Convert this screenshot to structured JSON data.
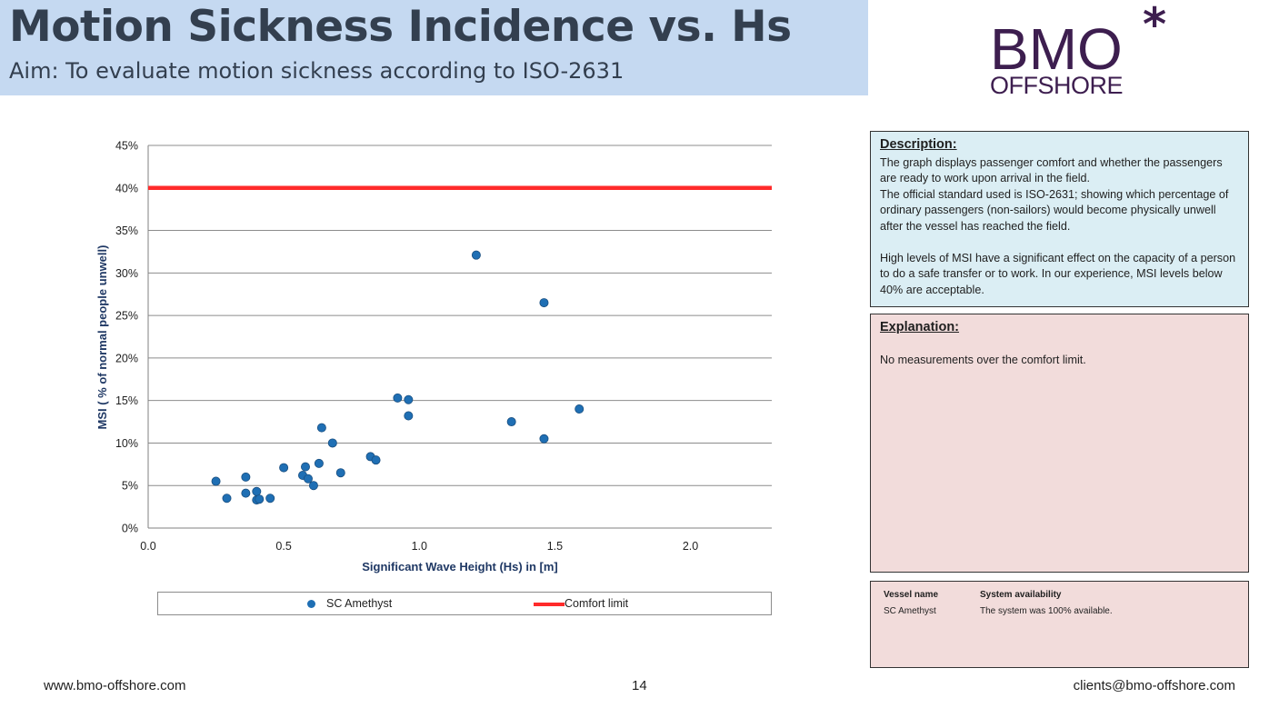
{
  "header": {
    "title": "Motion Sickness Incidence vs. Hs",
    "subtitle": "Aim: To evaluate motion sickness according to ISO-2631"
  },
  "logo": {
    "line1": "BMO",
    "line2": "OFFSHORE",
    "mark": "*",
    "color": "#3d1e4f"
  },
  "description": {
    "heading": "Description:",
    "p1": "The graph displays passenger comfort and whether the passengers are ready to work upon arrival in the field.",
    "p2": "The official standard used is ISO-2631; showing which percentage of ordinary passengers (non-sailors) would become physically unwell after the vessel has reached the field.",
    "p3": "High levels of MSI have a significant effect on the capacity of a person to do a safe transfer or to work. In our experience, MSI levels below 40% are acceptable."
  },
  "explanation": {
    "heading": "Explanation:",
    "text": "No measurements over the comfort limit."
  },
  "vessel_table": {
    "col1_header": "Vessel name",
    "col2_header": "System availability",
    "col1_value": "SC Amethyst",
    "col2_value": "The system was 100% available."
  },
  "legend": {
    "series1": "SC Amethyst",
    "series2": "Comfort limit"
  },
  "footer": {
    "website": "www.bmo-offshore.com",
    "page": "14",
    "email": "clients@bmo-offshore.com"
  },
  "chart_data": {
    "type": "scatter",
    "xlabel": "Significant Wave Height (Hs) in [m]",
    "ylabel": "MSI ( % of normal people unwell)",
    "xlim": [
      0,
      2.3
    ],
    "ylim": [
      0,
      45
    ],
    "x_ticks": [
      "0.0",
      "0.5",
      "1.0",
      "1.5",
      "2.0"
    ],
    "x_tick_values": [
      0,
      0.5,
      1.0,
      1.5,
      2.0
    ],
    "y_ticks": [
      "0%",
      "5%",
      "10%",
      "15%",
      "20%",
      "25%",
      "30%",
      "35%",
      "40%",
      "45%"
    ],
    "y_tick_values": [
      0,
      5,
      10,
      15,
      20,
      25,
      30,
      35,
      40,
      45
    ],
    "grid": true,
    "series": [
      {
        "name": "SC Amethyst",
        "color": "#1f6fb4",
        "points": [
          [
            0.25,
            5.5
          ],
          [
            0.29,
            3.5
          ],
          [
            0.36,
            6.0
          ],
          [
            0.36,
            4.1
          ],
          [
            0.4,
            4.3
          ],
          [
            0.4,
            3.3
          ],
          [
            0.41,
            3.4
          ],
          [
            0.45,
            3.5
          ],
          [
            0.5,
            7.1
          ],
          [
            0.57,
            6.2
          ],
          [
            0.58,
            7.2
          ],
          [
            0.59,
            5.8
          ],
          [
            0.61,
            5.0
          ],
          [
            0.63,
            7.6
          ],
          [
            0.64,
            11.8
          ],
          [
            0.68,
            10.0
          ],
          [
            0.71,
            6.5
          ],
          [
            0.82,
            8.4
          ],
          [
            0.84,
            8.0
          ],
          [
            0.92,
            15.3
          ],
          [
            0.96,
            15.1
          ],
          [
            0.96,
            13.2
          ],
          [
            1.21,
            32.1
          ],
          [
            1.34,
            12.5
          ],
          [
            1.46,
            26.5
          ],
          [
            1.46,
            10.5
          ],
          [
            1.59,
            14.0
          ]
        ]
      },
      {
        "name": "Comfort limit",
        "color": "#ff2b2b",
        "y": 40
      }
    ]
  }
}
